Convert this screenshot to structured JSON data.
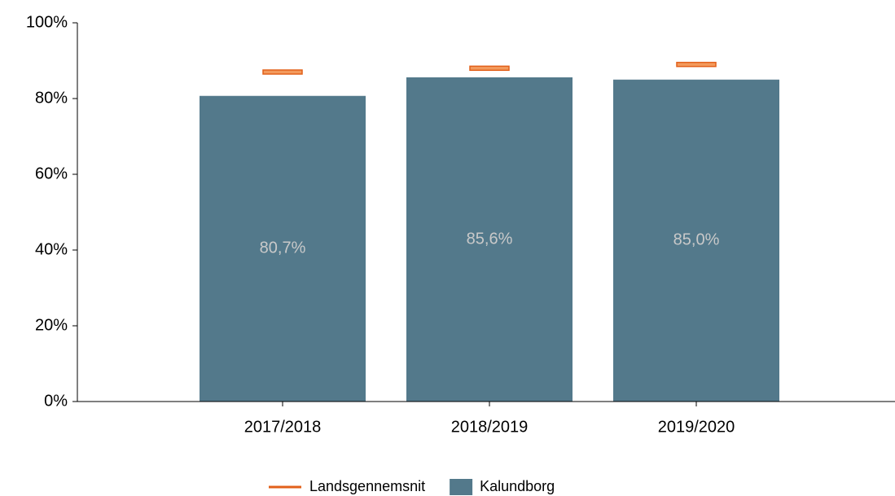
{
  "chart_data": {
    "type": "bar",
    "categories": [
      "2017/2018",
      "2018/2019",
      "2019/2020"
    ],
    "series": [
      {
        "name": "Landsgennemsnit",
        "color": "#e2601a",
        "kind": "marker",
        "values": [
          87,
          88,
          89
        ]
      },
      {
        "name": "Kalundborg",
        "color": "#53798b",
        "kind": "bar",
        "values": [
          80.7,
          85.6,
          85.0
        ],
        "value_labels": [
          "80,7%",
          "85,6%",
          "85,0%"
        ]
      }
    ],
    "ylim": [
      0,
      100
    ],
    "yticks": [
      {
        "value": 0,
        "label": "0%"
      },
      {
        "value": 20,
        "label": "20%"
      },
      {
        "value": 40,
        "label": "40%"
      },
      {
        "value": 60,
        "label": "60%"
      },
      {
        "value": 80,
        "label": "80%"
      },
      {
        "value": 100,
        "label": "100%"
      }
    ]
  }
}
